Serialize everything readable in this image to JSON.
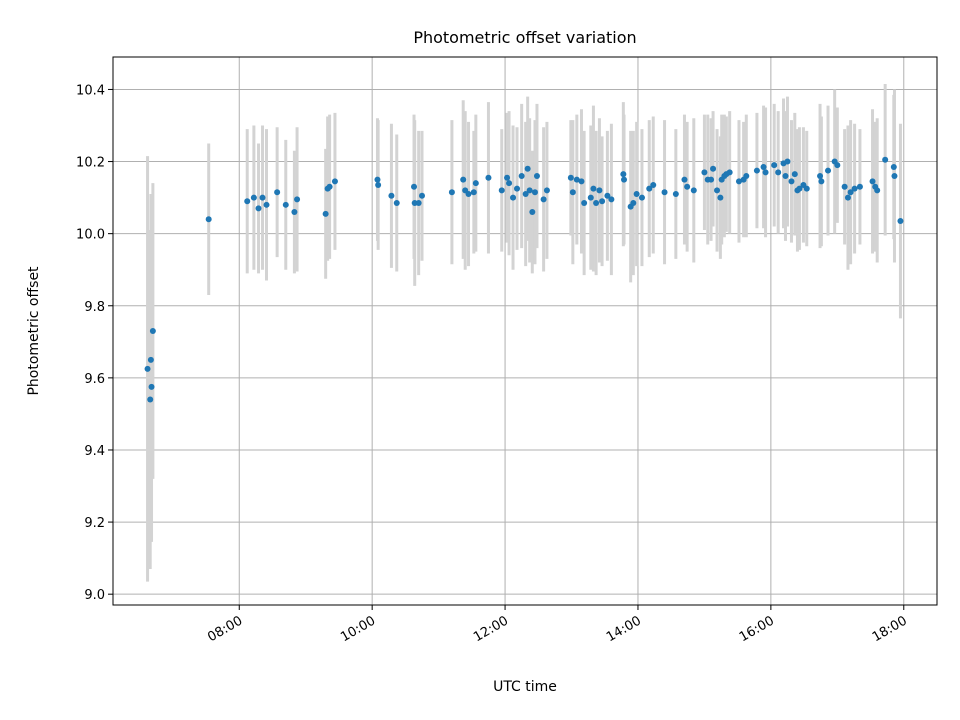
{
  "chart_data": {
    "type": "scatter",
    "title": "Photometric offset variation",
    "xlabel": "UTC time",
    "ylabel": "Photometric offset",
    "x_unit": "hours (UTC)",
    "xlim": [
      6.1,
      18.5
    ],
    "ylim": [
      8.97,
      10.49
    ],
    "grid": true,
    "colors": {
      "points": "#1f77b4",
      "error_bars": "#d3d3d3",
      "grid": "#b0b0b0"
    },
    "x_ticks": [
      {
        "value": 8,
        "label": "08:00"
      },
      {
        "value": 10,
        "label": "10:00"
      },
      {
        "value": 12,
        "label": "12:00"
      },
      {
        "value": 14,
        "label": "14:00"
      },
      {
        "value": 16,
        "label": "16:00"
      },
      {
        "value": 18,
        "label": "18:00"
      }
    ],
    "y_ticks": [
      {
        "value": 9.0,
        "label": "9.0"
      },
      {
        "value": 9.2,
        "label": "9.2"
      },
      {
        "value": 9.4,
        "label": "9.4"
      },
      {
        "value": 9.6,
        "label": "9.6"
      },
      {
        "value": 9.8,
        "label": "9.8"
      },
      {
        "value": 10.0,
        "label": "10.0"
      },
      {
        "value": 10.2,
        "label": "10.2"
      },
      {
        "value": 10.4,
        "label": "10.4"
      }
    ],
    "points": [
      {
        "x": 6.62,
        "y": 9.625,
        "err": 0.59
      },
      {
        "x": 6.66,
        "y": 9.54,
        "err": 0.47
      },
      {
        "x": 6.68,
        "y": 9.575,
        "err": 0.43
      },
      {
        "x": 6.67,
        "y": 9.65,
        "err": 0.46
      },
      {
        "x": 6.7,
        "y": 9.73,
        "err": 0.41
      },
      {
        "x": 7.54,
        "y": 10.04,
        "err": 0.21
      },
      {
        "x": 8.12,
        "y": 10.09,
        "err": 0.2
      },
      {
        "x": 8.22,
        "y": 10.1,
        "err": 0.2
      },
      {
        "x": 8.29,
        "y": 10.07,
        "err": 0.18
      },
      {
        "x": 8.35,
        "y": 10.1,
        "err": 0.2
      },
      {
        "x": 8.41,
        "y": 10.08,
        "err": 0.21
      },
      {
        "x": 8.57,
        "y": 10.115,
        "err": 0.18
      },
      {
        "x": 8.7,
        "y": 10.08,
        "err": 0.18
      },
      {
        "x": 8.83,
        "y": 10.06,
        "err": 0.17
      },
      {
        "x": 8.87,
        "y": 10.095,
        "err": 0.2
      },
      {
        "x": 9.3,
        "y": 10.055,
        "err": 0.18
      },
      {
        "x": 9.33,
        "y": 10.125,
        "err": 0.2
      },
      {
        "x": 9.36,
        "y": 10.13,
        "err": 0.2
      },
      {
        "x": 9.44,
        "y": 10.145,
        "err": 0.19
      },
      {
        "x": 10.08,
        "y": 10.15,
        "err": 0.17
      },
      {
        "x": 10.09,
        "y": 10.135,
        "err": 0.18
      },
      {
        "x": 10.29,
        "y": 10.105,
        "err": 0.2
      },
      {
        "x": 10.37,
        "y": 10.085,
        "err": 0.19
      },
      {
        "x": 10.63,
        "y": 10.13,
        "err": 0.2
      },
      {
        "x": 10.64,
        "y": 10.085,
        "err": 0.23
      },
      {
        "x": 10.7,
        "y": 10.085,
        "err": 0.2
      },
      {
        "x": 10.75,
        "y": 10.105,
        "err": 0.18
      },
      {
        "x": 11.2,
        "y": 10.115,
        "err": 0.2
      },
      {
        "x": 11.37,
        "y": 10.15,
        "err": 0.22
      },
      {
        "x": 11.4,
        "y": 10.12,
        "err": 0.22
      },
      {
        "x": 11.45,
        "y": 10.11,
        "err": 0.2
      },
      {
        "x": 11.53,
        "y": 10.115,
        "err": 0.17
      },
      {
        "x": 11.56,
        "y": 10.14,
        "err": 0.19
      },
      {
        "x": 11.75,
        "y": 10.155,
        "err": 0.21
      },
      {
        "x": 11.95,
        "y": 10.12,
        "err": 0.17
      },
      {
        "x": 12.03,
        "y": 10.155,
        "err": 0.18
      },
      {
        "x": 12.06,
        "y": 10.14,
        "err": 0.2
      },
      {
        "x": 12.12,
        "y": 10.1,
        "err": 0.2
      },
      {
        "x": 12.18,
        "y": 10.125,
        "err": 0.17
      },
      {
        "x": 12.25,
        "y": 10.16,
        "err": 0.2
      },
      {
        "x": 12.31,
        "y": 10.11,
        "err": 0.2
      },
      {
        "x": 12.34,
        "y": 10.18,
        "err": 0.2
      },
      {
        "x": 12.37,
        "y": 10.12,
        "err": 0.2
      },
      {
        "x": 12.41,
        "y": 10.06,
        "err": 0.17
      },
      {
        "x": 12.45,
        "y": 10.115,
        "err": 0.2
      },
      {
        "x": 12.48,
        "y": 10.16,
        "err": 0.2
      },
      {
        "x": 12.58,
        "y": 10.095,
        "err": 0.2
      },
      {
        "x": 12.63,
        "y": 10.12,
        "err": 0.19
      },
      {
        "x": 12.99,
        "y": 10.155,
        "err": 0.16
      },
      {
        "x": 13.02,
        "y": 10.115,
        "err": 0.2
      },
      {
        "x": 13.08,
        "y": 10.15,
        "err": 0.18
      },
      {
        "x": 13.15,
        "y": 10.145,
        "err": 0.2
      },
      {
        "x": 13.19,
        "y": 10.085,
        "err": 0.2
      },
      {
        "x": 13.29,
        "y": 10.1,
        "err": 0.2
      },
      {
        "x": 13.33,
        "y": 10.125,
        "err": 0.23
      },
      {
        "x": 13.37,
        "y": 10.085,
        "err": 0.2
      },
      {
        "x": 13.42,
        "y": 10.12,
        "err": 0.2
      },
      {
        "x": 13.46,
        "y": 10.09,
        "err": 0.18
      },
      {
        "x": 13.54,
        "y": 10.105,
        "err": 0.18
      },
      {
        "x": 13.6,
        "y": 10.095,
        "err": 0.21
      },
      {
        "x": 13.78,
        "y": 10.165,
        "err": 0.2
      },
      {
        "x": 13.79,
        "y": 10.15,
        "err": 0.18
      },
      {
        "x": 13.89,
        "y": 10.075,
        "err": 0.21
      },
      {
        "x": 13.93,
        "y": 10.085,
        "err": 0.2
      },
      {
        "x": 13.98,
        "y": 10.11,
        "err": 0.2
      },
      {
        "x": 14.06,
        "y": 10.1,
        "err": 0.19
      },
      {
        "x": 14.17,
        "y": 10.125,
        "err": 0.19
      },
      {
        "x": 14.23,
        "y": 10.135,
        "err": 0.19
      },
      {
        "x": 14.4,
        "y": 10.115,
        "err": 0.2
      },
      {
        "x": 14.57,
        "y": 10.11,
        "err": 0.18
      },
      {
        "x": 14.7,
        "y": 10.15,
        "err": 0.18
      },
      {
        "x": 14.74,
        "y": 10.13,
        "err": 0.18
      },
      {
        "x": 14.84,
        "y": 10.12,
        "err": 0.2
      },
      {
        "x": 15.0,
        "y": 10.17,
        "err": 0.16
      },
      {
        "x": 15.05,
        "y": 10.15,
        "err": 0.18
      },
      {
        "x": 15.1,
        "y": 10.15,
        "err": 0.17
      },
      {
        "x": 15.13,
        "y": 10.18,
        "err": 0.16
      },
      {
        "x": 15.19,
        "y": 10.12,
        "err": 0.17
      },
      {
        "x": 15.24,
        "y": 10.1,
        "err": 0.17
      },
      {
        "x": 15.26,
        "y": 10.15,
        "err": 0.18
      },
      {
        "x": 15.3,
        "y": 10.16,
        "err": 0.17
      },
      {
        "x": 15.33,
        "y": 10.165,
        "err": 0.16
      },
      {
        "x": 15.38,
        "y": 10.17,
        "err": 0.17
      },
      {
        "x": 15.52,
        "y": 10.145,
        "err": 0.17
      },
      {
        "x": 15.59,
        "y": 10.15,
        "err": 0.16
      },
      {
        "x": 15.63,
        "y": 10.16,
        "err": 0.17
      },
      {
        "x": 15.79,
        "y": 10.175,
        "err": 0.16
      },
      {
        "x": 15.89,
        "y": 10.185,
        "err": 0.17
      },
      {
        "x": 15.92,
        "y": 10.17,
        "err": 0.18
      },
      {
        "x": 16.05,
        "y": 10.19,
        "err": 0.17
      },
      {
        "x": 16.11,
        "y": 10.17,
        "err": 0.17
      },
      {
        "x": 16.19,
        "y": 10.195,
        "err": 0.18
      },
      {
        "x": 16.22,
        "y": 10.16,
        "err": 0.18
      },
      {
        "x": 16.25,
        "y": 10.2,
        "err": 0.18
      },
      {
        "x": 16.31,
        "y": 10.145,
        "err": 0.17
      },
      {
        "x": 16.36,
        "y": 10.165,
        "err": 0.17
      },
      {
        "x": 16.4,
        "y": 10.12,
        "err": 0.17
      },
      {
        "x": 16.43,
        "y": 10.125,
        "err": 0.17
      },
      {
        "x": 16.49,
        "y": 10.135,
        "err": 0.16
      },
      {
        "x": 16.54,
        "y": 10.125,
        "err": 0.16
      },
      {
        "x": 16.74,
        "y": 10.16,
        "err": 0.2
      },
      {
        "x": 16.76,
        "y": 10.145,
        "err": 0.18
      },
      {
        "x": 16.86,
        "y": 10.175,
        "err": 0.18
      },
      {
        "x": 16.96,
        "y": 10.2,
        "err": 0.2
      },
      {
        "x": 17.0,
        "y": 10.19,
        "err": 0.16
      },
      {
        "x": 17.11,
        "y": 10.13,
        "err": 0.16
      },
      {
        "x": 17.16,
        "y": 10.1,
        "err": 0.2
      },
      {
        "x": 17.2,
        "y": 10.115,
        "err": 0.2
      },
      {
        "x": 17.26,
        "y": 10.125,
        "err": 0.18
      },
      {
        "x": 17.34,
        "y": 10.13,
        "err": 0.16
      },
      {
        "x": 17.53,
        "y": 10.145,
        "err": 0.2
      },
      {
        "x": 17.57,
        "y": 10.13,
        "err": 0.18
      },
      {
        "x": 17.6,
        "y": 10.12,
        "err": 0.2
      },
      {
        "x": 17.72,
        "y": 10.205,
        "err": 0.21
      },
      {
        "x": 17.85,
        "y": 10.185,
        "err": 0.2
      },
      {
        "x": 17.86,
        "y": 10.16,
        "err": 0.24
      },
      {
        "x": 17.95,
        "y": 10.035,
        "err": 0.27
      }
    ]
  }
}
